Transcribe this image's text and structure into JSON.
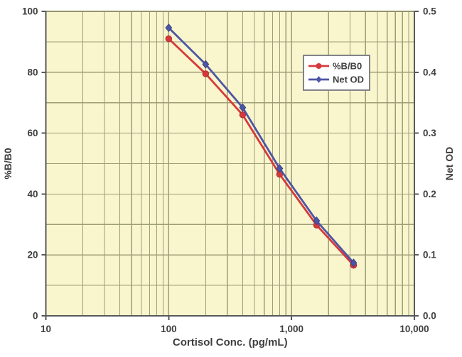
{
  "chart_data": {
    "type": "line",
    "title": "",
    "xlabel": "Cortisol Conc. (pg/mL)",
    "ylabel_left": "%B/B0",
    "ylabel_right": "Net OD",
    "x_scale": "log",
    "xlim": [
      10,
      10000
    ],
    "x_ticks": [
      {
        "v": 10,
        "label": "10"
      },
      {
        "v": 100,
        "label": "100"
      },
      {
        "v": 1000,
        "label": "1,000"
      },
      {
        "v": 10000,
        "label": "10,000"
      }
    ],
    "ylim_left": [
      0,
      100
    ],
    "y_ticks_left": [
      {
        "v": 0,
        "label": "0"
      },
      {
        "v": 20,
        "label": "20"
      },
      {
        "v": 40,
        "label": "40"
      },
      {
        "v": 60,
        "label": "60"
      },
      {
        "v": 80,
        "label": "80"
      },
      {
        "v": 100,
        "label": "100"
      }
    ],
    "ylim_right": [
      0,
      0.5
    ],
    "y_ticks_right": [
      {
        "v": 0.0,
        "label": "0.0"
      },
      {
        "v": 0.1,
        "label": "0.1"
      },
      {
        "v": 0.2,
        "label": "0.2"
      },
      {
        "v": 0.3,
        "label": "0.3"
      },
      {
        "v": 0.4,
        "label": "0.4"
      },
      {
        "v": 0.5,
        "label": "0.5"
      }
    ],
    "grid": {
      "horizontal_minor_step": 10,
      "vertical_log_minors": true
    },
    "x": [
      100,
      200,
      400,
      800,
      1600,
      3200
    ],
    "series": [
      {
        "name": "%B/B0",
        "axis": "left",
        "color": "#d6393c",
        "marker": "circle",
        "values": [
          91,
          79.5,
          66,
          46.5,
          29.8,
          16.6
        ]
      },
      {
        "name": "Net OD",
        "axis": "right",
        "color": "#4d55a5",
        "marker": "diamond",
        "values": [
          0.473,
          0.413,
          0.342,
          0.242,
          0.156,
          0.087
        ]
      }
    ],
    "legend": {
      "position": "inside-upper-right",
      "items": [
        "%B/B0",
        "Net OD"
      ]
    },
    "colors": {
      "outer_bg": "#ffffff",
      "plot_bg": "#f9f5cd",
      "grid": "#9d9d76",
      "frame_top": "#93936e",
      "axis": "#58595b",
      "text": "#3f3f41",
      "legend_bg": "#ffffff",
      "legend_border": "#818387"
    }
  }
}
